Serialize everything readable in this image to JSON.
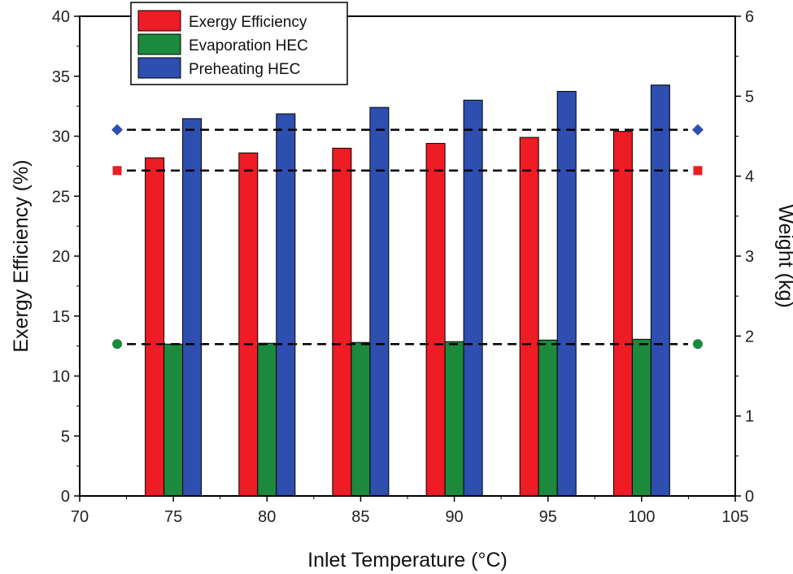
{
  "chart_data": {
    "type": "bar",
    "x": [
      75,
      80,
      85,
      90,
      95,
      100
    ],
    "xlabel": "Inlet Temperature (°C)",
    "ylabel": "Exergy Efficiency (%)",
    "y2label": "Weight (kg)",
    "xlim": [
      70,
      105
    ],
    "ylim": [
      0,
      40
    ],
    "y2lim": [
      0,
      6
    ],
    "xticks": [
      70,
      75,
      80,
      85,
      90,
      95,
      100,
      105
    ],
    "yticks": [
      0,
      5,
      10,
      15,
      20,
      25,
      30,
      35,
      40
    ],
    "y2ticks": [
      0,
      1,
      2,
      3,
      4,
      5,
      6
    ],
    "grid": false,
    "legend_position": "top-left",
    "series": [
      {
        "name": "Exergy Efficiency",
        "axis": "left",
        "color": "#ee1c24",
        "values": [
          28.2,
          28.6,
          29.0,
          29.4,
          29.9,
          30.4
        ]
      },
      {
        "name": "Evaporation HEC",
        "axis": "right",
        "color": "#1b8a3c",
        "values": [
          1.9,
          1.91,
          1.92,
          1.93,
          1.95,
          1.96
        ]
      },
      {
        "name": "Preheating HEC",
        "axis": "right",
        "color": "#2e4fb0",
        "values": [
          4.72,
          4.78,
          4.86,
          4.95,
          5.06,
          5.14
        ]
      }
    ],
    "reference_lines": [
      {
        "axis": "right",
        "value": 4.58,
        "marker": "diamond",
        "color": "#2e4fb0",
        "style": "dashed"
      },
      {
        "axis": "right",
        "value": 4.07,
        "marker": "square",
        "color": "#ee1c24",
        "style": "dashed"
      },
      {
        "axis": "right",
        "value": 1.9,
        "marker": "circle",
        "color": "#1b8a3c",
        "style": "dashed"
      }
    ],
    "reference_markers_x": [
      72,
      103
    ]
  }
}
